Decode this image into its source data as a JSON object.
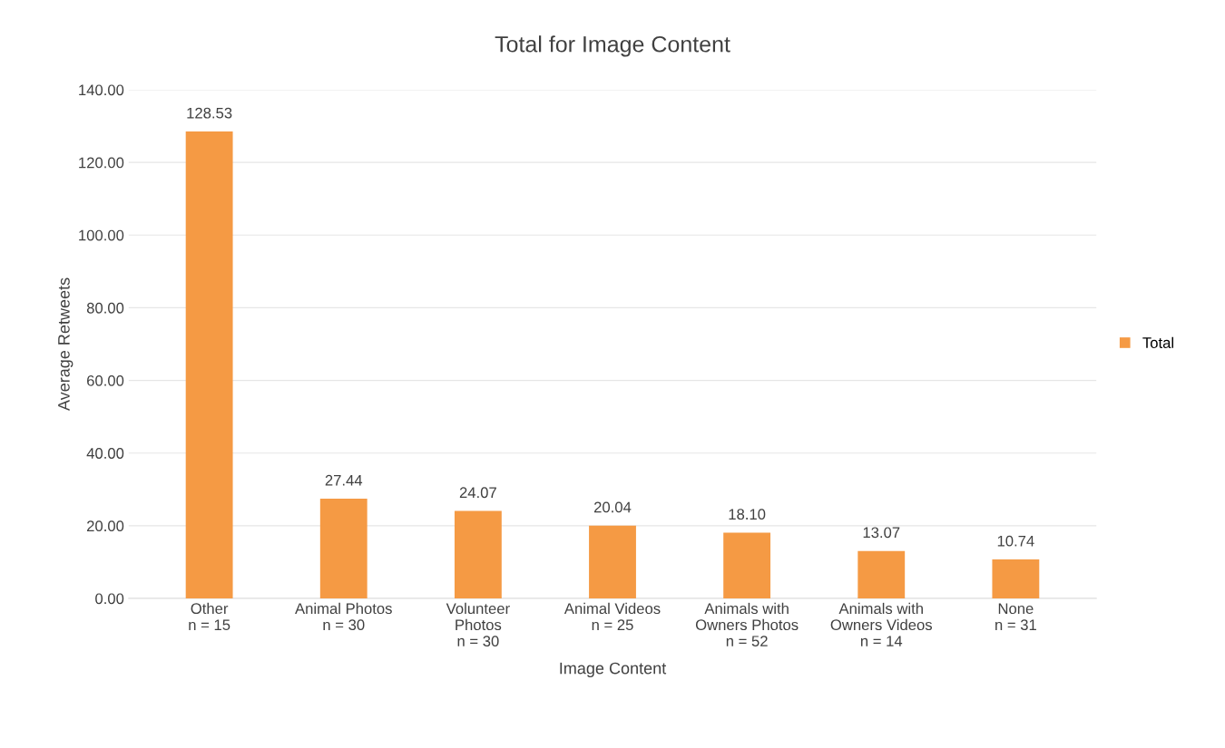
{
  "chart_data": {
    "type": "bar",
    "title": "Total for Image Content",
    "xlabel": "Image Content",
    "ylabel": "Average Retweets",
    "categories": [
      "Other\nn = 15",
      "Animal Photos\nn = 30",
      "Volunteer\nPhotos\nn = 30",
      "Animal Videos\nn = 25",
      "Animals with\nOwners Photos\nn = 52",
      "Animals with\nOwners Videos\nn = 14",
      "None\nn = 31"
    ],
    "series": [
      {
        "name": "Total",
        "color": "#f59a44",
        "values": [
          128.53,
          27.44,
          24.07,
          20.04,
          18.1,
          13.07,
          10.74
        ],
        "value_labels": [
          "128.53",
          "27.44",
          "24.07",
          "20.04",
          "18.10",
          "13.07",
          "10.74"
        ]
      }
    ],
    "ylim": [
      0,
      140
    ],
    "yticks": [
      {
        "value": 0,
        "label": "0.00"
      },
      {
        "value": 20,
        "label": "20.00"
      },
      {
        "value": 40,
        "label": "40.00"
      },
      {
        "value": 60,
        "label": "60.00"
      },
      {
        "value": 80,
        "label": "80.00"
      },
      {
        "value": 100,
        "label": "100.00"
      },
      {
        "value": 120,
        "label": "120.00"
      },
      {
        "value": 140,
        "label": "140.00"
      }
    ],
    "grid": "y",
    "legend": "right"
  }
}
